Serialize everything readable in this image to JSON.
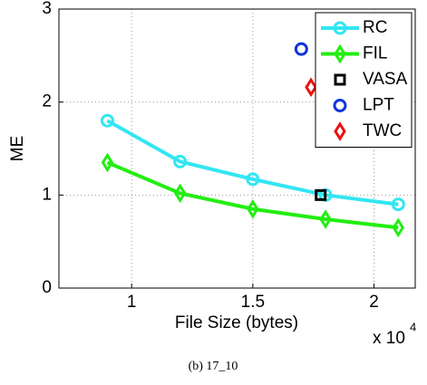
{
  "chart_data": {
    "type": "line",
    "xlabel": "File Size (bytes)",
    "ylabel": "ME",
    "x_multiplier": {
      "base": "x 10",
      "exponent": "4"
    },
    "caption": "(b) 17_10",
    "xlim": [
      0.7,
      2.17
    ],
    "xticks": [
      1,
      1.5,
      2
    ],
    "ylim": [
      0,
      3
    ],
    "yticks": [
      0,
      1,
      2,
      3
    ],
    "grid": true,
    "legend": "upper right",
    "series": [
      {
        "name": "RC",
        "color": "#33e6f2",
        "marker": "circle",
        "line": true,
        "x": [
          0.9,
          1.2,
          1.5,
          1.8,
          2.1
        ],
        "values": [
          1.8,
          1.36,
          1.17,
          1.0,
          0.9
        ]
      },
      {
        "name": "FIL",
        "color": "#22ee11",
        "marker": "diamond",
        "line": true,
        "x": [
          0.9,
          1.2,
          1.5,
          1.8,
          2.1
        ],
        "values": [
          1.35,
          1.02,
          0.85,
          0.74,
          0.65
        ]
      },
      {
        "name": "VASA",
        "color": "#000000",
        "marker": "square",
        "line": false,
        "x": [
          1.78
        ],
        "values": [
          1.0
        ]
      },
      {
        "name": "LPT",
        "color": "#1133dd",
        "marker": "circle",
        "line": false,
        "x": [
          1.7
        ],
        "values": [
          2.57
        ]
      },
      {
        "name": "TWC",
        "color": "#ee1111",
        "marker": "diamond",
        "line": false,
        "x": [
          1.74
        ],
        "values": [
          2.16
        ]
      }
    ]
  }
}
